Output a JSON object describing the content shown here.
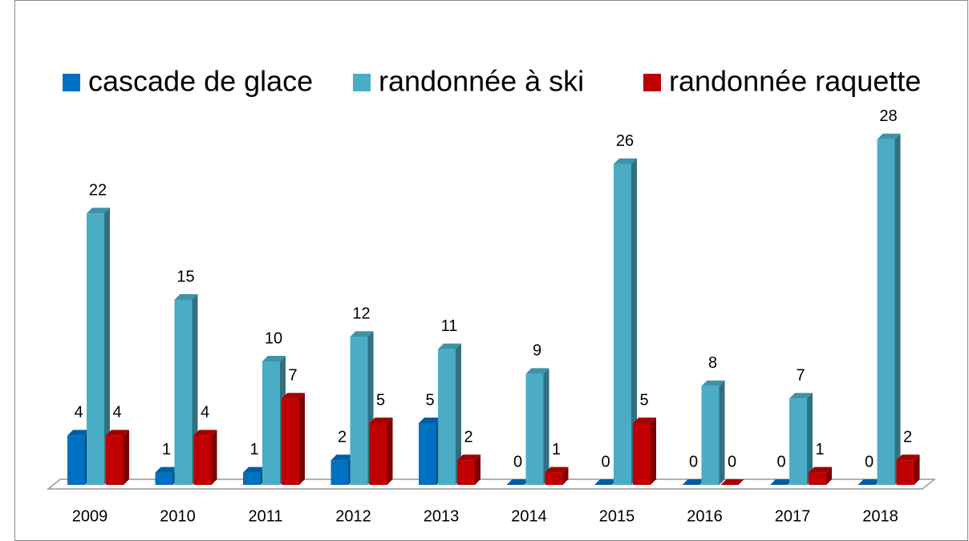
{
  "chart_data": {
    "type": "bar3d",
    "categories": [
      "2009",
      "2010",
      "2011",
      "2012",
      "2013",
      "2014",
      "2015",
      "2016",
      "2017",
      "2018"
    ],
    "series": [
      {
        "name": "cascade de glace",
        "color": "#0070c0",
        "values": [
          4,
          1,
          1,
          2,
          5,
          0,
          0,
          0,
          0,
          0
        ]
      },
      {
        "name": "randonnée à ski",
        "color": "#4bacc6",
        "values": [
          22,
          15,
          10,
          12,
          11,
          9,
          26,
          8,
          7,
          28
        ]
      },
      {
        "name": "randonnée raquette",
        "color": "#c00000",
        "values": [
          4,
          4,
          7,
          5,
          2,
          1,
          5,
          0,
          1,
          2
        ]
      }
    ],
    "legend": "top"
  }
}
